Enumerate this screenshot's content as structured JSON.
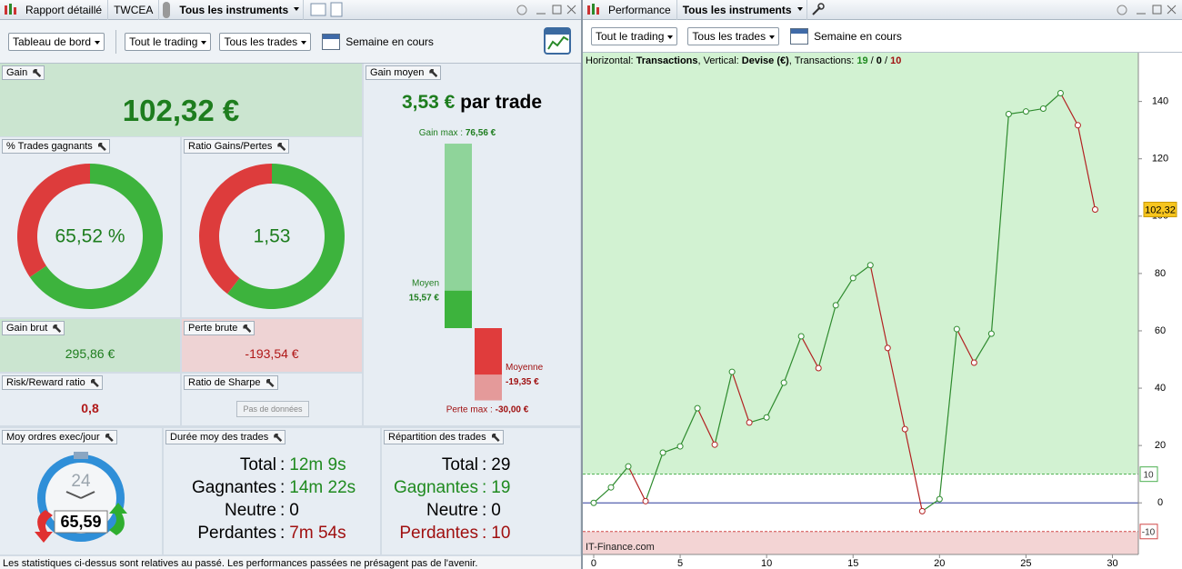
{
  "left_panel": {
    "tabs": [
      "Rapport détaillé",
      "TWCEA",
      "Tous les instruments"
    ],
    "toolbar": [
      "Tableau de bord",
      "Tout le trading",
      "Tous les trades",
      "Semaine en cours"
    ],
    "gain": {
      "label": "Gain",
      "value": "102,32 €"
    },
    "win_rate": {
      "label": "% Trades gagnants",
      "value": 65.52,
      "value_label": "65,52 %"
    },
    "gain_loss_ratio": {
      "label": "Ratio Gains/Pertes",
      "value": 1.53,
      "value_label": "1,53"
    },
    "gross_gain": {
      "label": "Gain brut",
      "value": "295,86 €"
    },
    "gross_loss": {
      "label": "Perte brute",
      "value": "-193,54 €"
    },
    "risk_reward": {
      "label": "Risk/Reward ratio",
      "value": "0,8"
    },
    "sharpe": {
      "label": "Ratio de Sharpe",
      "value": "Pas de données"
    },
    "avg_gain": {
      "label": "Gain moyen",
      "headline": "3,53 €",
      "headline_suffix": "par trade",
      "max_gain": {
        "caption": "Gain max :",
        "value": 76.56,
        "value_label": "76,56 €"
      },
      "avg_win": {
        "caption": "Moyen",
        "value": 15.57,
        "value_label": "15,57 €"
      },
      "avg_loss": {
        "caption": "Moyenne",
        "value": -19.35,
        "value_label": "-19,35 €"
      },
      "max_loss": {
        "caption": "Perte max :",
        "value": -30.0,
        "value_label": "-30,00 €"
      }
    },
    "orders_per_day": {
      "label": "Moy ordres exec/jour",
      "clock": "24",
      "value": "65,59"
    },
    "separator": ":",
    "durations": {
      "label": "Durée moy des trades",
      "rows": [
        {
          "label": "Total",
          "value": "12m 9s",
          "label_color": "#000000",
          "value_color": "#1f8a1f"
        },
        {
          "label": "Gagnantes",
          "value": "14m 22s",
          "label_color": "#000000",
          "value_color": "#1f8a1f"
        },
        {
          "label": "Neutre",
          "value": "0",
          "label_color": "#000000",
          "value_color": "#000000"
        },
        {
          "label": "Perdantes",
          "value": "7m 54s",
          "label_color": "#000000",
          "value_color": "#a01010"
        }
      ]
    },
    "distribution": {
      "label": "Répartition des trades",
      "rows": [
        {
          "label": "Total",
          "value": "29",
          "label_color": "#000000",
          "value_color": "#000000"
        },
        {
          "label": "Gagnantes",
          "value": "19",
          "label_color": "#1f8a1f",
          "value_color": "#1f8a1f"
        },
        {
          "label": "Neutre",
          "value": "0",
          "label_color": "#000000",
          "value_color": "#000000"
        },
        {
          "label": "Perdantes",
          "value": "10",
          "label_color": "#a01010",
          "value_color": "#a01010"
        }
      ]
    },
    "footer": "Les statistiques ci-dessus sont relatives au passé. Les performances passées ne présagent pas de l'avenir."
  },
  "right_panel": {
    "tabs": [
      "Performance",
      "Tous les instruments"
    ],
    "toolbar": [
      "Tout le trading",
      "Tous les trades",
      "Semaine en cours"
    ]
  },
  "chart_data": {
    "type": "line",
    "header": [
      {
        "text": "Horizontal: ",
        "bold": false,
        "color": "#000000"
      },
      {
        "text": "Transactions",
        "bold": true,
        "color": "#000000"
      },
      {
        "text": ", Vertical: ",
        "bold": false,
        "color": "#000000"
      },
      {
        "text": "Devise (€)",
        "bold": true,
        "color": "#000000"
      },
      {
        "text": ", Transactions: ",
        "bold": false,
        "color": "#000000"
      },
      {
        "text": "19",
        "bold": true,
        "color": "#1f8a1f"
      },
      {
        "text": " / ",
        "bold": false,
        "color": "#000000"
      },
      {
        "text": "0",
        "bold": true,
        "color": "#000000"
      },
      {
        "text": " / ",
        "bold": false,
        "color": "#000000"
      },
      {
        "text": "10",
        "bold": true,
        "color": "#a01010"
      }
    ],
    "watermark": "IT-Finance.com",
    "x": [
      0,
      1,
      2,
      3,
      4,
      5,
      6,
      7,
      8,
      9,
      10,
      11,
      12,
      13,
      14,
      15,
      16,
      17,
      18,
      19,
      20,
      21,
      22,
      23,
      24,
      25,
      26,
      27,
      28,
      29
    ],
    "values": [
      0,
      5.4,
      12.7,
      0.6,
      17.5,
      19.7,
      33,
      20.3,
      45.7,
      28,
      29.8,
      41.9,
      58.1,
      47,
      68.9,
      78.4,
      82.9,
      54,
      25.7,
      -2.9,
      1.3,
      60.6,
      48.9,
      59,
      135.6,
      136.5,
      137.5,
      142.9,
      131.7,
      102.32
    ],
    "last_value_label": "102,32",
    "up_color": "#2e8b2e",
    "down_color": "#b22222",
    "zero_line_color": "#2b3a9a",
    "thresholds": [
      {
        "value": 10,
        "color": "#4cb050",
        "zone_color": "#d2f2d2"
      },
      {
        "value": -10,
        "color": "#d04848",
        "zone_color": "#f3d4d4"
      }
    ],
    "xlim": [
      -0.63,
      31.5
    ],
    "xticks": [
      0,
      5,
      10,
      15,
      20,
      25,
      30
    ],
    "ylim": [
      -18,
      157
    ],
    "yticks": [
      0,
      20,
      40,
      60,
      80,
      100,
      120,
      140
    ]
  }
}
